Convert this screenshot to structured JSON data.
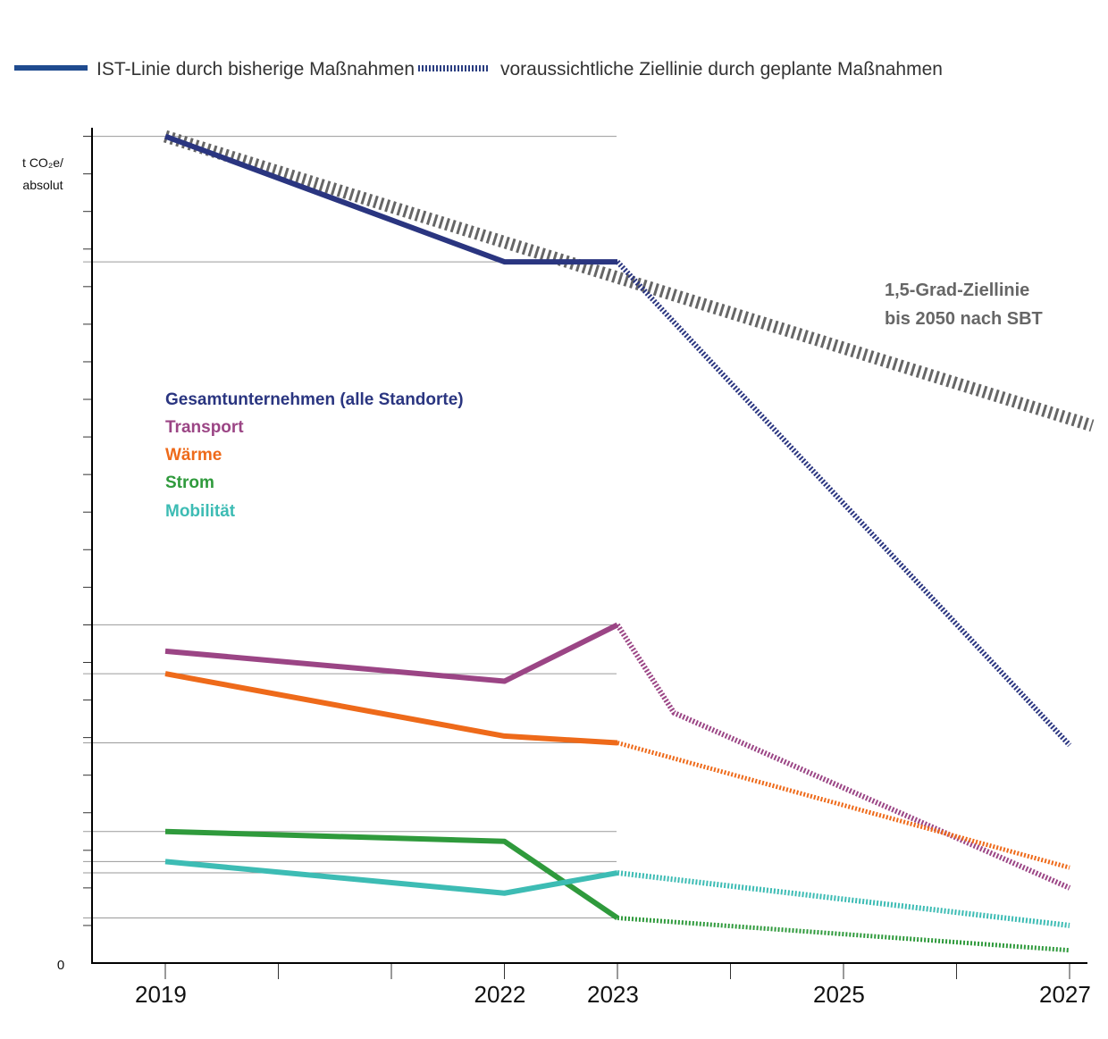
{
  "legend": {
    "actual_label": "IST-Linie durch bisherige Maßnahmen",
    "planned_label": "voraussichtliche Ziellinie durch geplante Maßnahmen"
  },
  "axis": {
    "y_unit_line1": "t CO₂e/",
    "y_unit_line2": "absolut",
    "zero_label": "0"
  },
  "annotation": {
    "line1": "1,5-Grad-Ziellinie",
    "line2": "bis 2050 nach SBT"
  },
  "colors": {
    "gesamt": "#2a3580",
    "transport": "#9b4585",
    "waerme": "#ee6a1a",
    "strom": "#2f9a3c",
    "mobilitaet": "#3dbcb4",
    "target_line": "#666666",
    "legend_actual": "#1f4b8f",
    "legend_planned": "#2a3d80"
  },
  "chart_data": {
    "type": "line",
    "title": "",
    "xlabel": "",
    "ylabel": "t CO₂e/ absolut",
    "x_ticks": [
      "2019",
      "2022",
      "2023",
      "2025",
      "2027"
    ],
    "xlim": [
      2018.4,
      2027.2
    ],
    "ylim": [
      0,
      1100
    ],
    "grid": "reference lines only",
    "series": [
      {
        "key": "gesamt",
        "name": "Gesamtunternehmen (alle Standorte)",
        "actual": [
          [
            2019,
            1100
          ],
          [
            2022,
            933
          ],
          [
            2023,
            933
          ]
        ],
        "planned": [
          [
            2023,
            933
          ],
          [
            2027,
            290
          ]
        ]
      },
      {
        "key": "transport",
        "name": "Transport",
        "actual": [
          [
            2019,
            415
          ],
          [
            2022,
            375
          ],
          [
            2023,
            450
          ]
        ],
        "planned": [
          [
            2023,
            450
          ],
          [
            2023.5,
            333
          ],
          [
            2027,
            100
          ]
        ]
      },
      {
        "key": "waerme",
        "name": "Wärme",
        "actual": [
          [
            2019,
            385
          ],
          [
            2022,
            302
          ],
          [
            2023,
            293
          ]
        ],
        "planned": [
          [
            2023,
            293
          ],
          [
            2027,
            127
          ]
        ]
      },
      {
        "key": "strom",
        "name": "Strom",
        "actual": [
          [
            2019,
            175
          ],
          [
            2022,
            162
          ],
          [
            2023,
            60
          ]
        ],
        "planned": [
          [
            2023,
            60
          ],
          [
            2027,
            17
          ]
        ]
      },
      {
        "key": "mobilitaet",
        "name": "Mobilität",
        "actual": [
          [
            2019,
            135
          ],
          [
            2022,
            93
          ],
          [
            2023,
            120
          ]
        ],
        "planned": [
          [
            2023,
            120
          ],
          [
            2027,
            50
          ]
        ]
      }
    ],
    "target_line": {
      "name": "1,5-Grad-Ziellinie bis 2050 nach SBT",
      "points": [
        [
          2019,
          1100
        ],
        [
          2027.2,
          715
        ]
      ]
    },
    "reference_levels": [
      1100,
      933,
      450,
      385,
      293,
      175,
      135,
      120,
      60
    ]
  }
}
